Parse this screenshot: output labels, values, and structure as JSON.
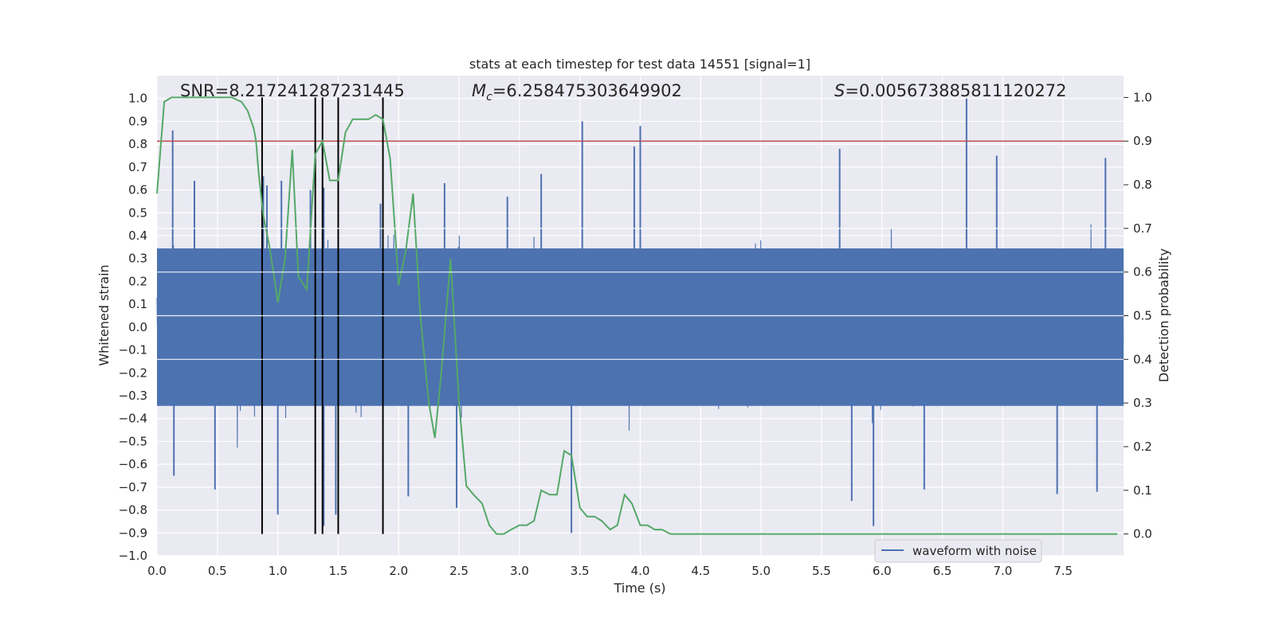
{
  "chart_data": {
    "type": "line",
    "title": "stats at each timestep for test data 14551 [signal=1]",
    "xlabel": "Time (s)",
    "ylabel_left": "Whitened strain",
    "ylabel_right": "Detection probability",
    "xlim": [
      0.0,
      8.0
    ],
    "ylim_left": [
      -1.0,
      1.1
    ],
    "ylim_right": [
      -0.05,
      1.05
    ],
    "x_ticks": [
      "0.0",
      "0.5",
      "1.0",
      "1.5",
      "2.0",
      "2.5",
      "3.0",
      "3.5",
      "4.0",
      "4.5",
      "5.0",
      "5.5",
      "6.0",
      "6.5",
      "7.0",
      "7.5"
    ],
    "y_ticks_left": [
      "−1.0",
      "−0.9",
      "−0.8",
      "−0.7",
      "−0.6",
      "−0.5",
      "−0.4",
      "−0.3",
      "−0.2",
      "−0.1",
      "0.0",
      "0.1",
      "0.2",
      "0.3",
      "0.4",
      "0.5",
      "0.6",
      "0.7",
      "0.8",
      "0.9",
      "1.0"
    ],
    "y_ticks_right": [
      "0.0",
      "0.1",
      "0.2",
      "0.3",
      "0.4",
      "0.5",
      "0.6",
      "0.7",
      "0.8",
      "0.9",
      "1.0"
    ],
    "grid": true,
    "annotations": {
      "snr": "SNR=8.217241287231445",
      "mc_symbol": "M",
      "mc_sub": "c",
      "mc_value": "=6.258475303649902",
      "s_symbol": "S",
      "s_value": "=0.005673885811120272"
    },
    "legend": {
      "label": "waveform with noise",
      "placement": "lower-right"
    },
    "series": [
      {
        "name": "waveform with noise",
        "axis": "left",
        "color": "#4c72b0",
        "style": "dense noise, 8 s sampled",
        "core_amplitude": 0.42,
        "peak_samples": [
          [
            0.13,
            0.86
          ],
          [
            0.31,
            0.64
          ],
          [
            0.88,
            0.66
          ],
          [
            0.91,
            0.62
          ],
          [
            1.03,
            0.64
          ],
          [
            1.27,
            0.6
          ],
          [
            1.38,
            0.61
          ],
          [
            1.85,
            0.54
          ],
          [
            2.38,
            0.63
          ],
          [
            2.9,
            0.57
          ],
          [
            3.18,
            0.67
          ],
          [
            3.52,
            0.9
          ],
          [
            3.95,
            0.79
          ],
          [
            4.0,
            0.88
          ],
          [
            5.65,
            0.78
          ],
          [
            6.7,
            1.0
          ],
          [
            6.95,
            0.75
          ],
          [
            7.85,
            0.74
          ]
        ],
        "trough_samples": [
          [
            0.14,
            -0.65
          ],
          [
            0.48,
            -0.71
          ],
          [
            1.0,
            -0.82
          ],
          [
            1.38,
            -0.87
          ],
          [
            1.48,
            -0.82
          ],
          [
            2.08,
            -0.74
          ],
          [
            2.48,
            -0.79
          ],
          [
            3.43,
            -0.9
          ],
          [
            5.75,
            -0.76
          ],
          [
            5.93,
            -0.87
          ],
          [
            6.35,
            -0.71
          ],
          [
            7.45,
            -0.73
          ],
          [
            7.78,
            -0.72
          ]
        ]
      },
      {
        "name": "",
        "axis": "right",
        "color": "#55a868",
        "x": [
          0.0,
          0.06,
          0.12,
          0.25,
          0.5,
          0.62,
          0.7,
          0.75,
          0.8,
          0.82,
          0.84,
          0.86,
          0.88,
          0.93,
          0.98,
          1.0,
          1.06,
          1.12,
          1.17,
          1.24,
          1.31,
          1.37,
          1.43,
          1.5,
          1.56,
          1.62,
          1.68,
          1.75,
          1.81,
          1.87,
          1.93,
          2.0,
          2.06,
          2.12,
          2.18,
          2.25,
          2.3,
          2.35,
          2.43,
          2.5,
          2.56,
          2.62,
          2.69,
          2.75,
          2.81,
          2.87,
          2.93,
          3.0,
          3.06,
          3.12,
          3.18,
          3.25,
          3.31,
          3.37,
          3.43,
          3.5,
          3.56,
          3.62,
          3.68,
          3.75,
          3.81,
          3.87,
          3.93,
          4.0,
          4.06,
          4.12,
          4.18,
          4.25,
          4.5,
          4.75,
          5.0,
          5.25,
          5.5,
          5.75,
          6.0,
          6.25,
          6.5,
          6.75,
          7.0,
          7.25,
          7.5,
          7.75,
          7.95
        ],
        "y": [
          0.78,
          0.99,
          1.0,
          1.0,
          1.0,
          1.0,
          0.99,
          0.97,
          0.93,
          0.9,
          0.83,
          0.78,
          0.73,
          0.66,
          0.57,
          0.53,
          0.63,
          0.88,
          0.59,
          0.56,
          0.87,
          0.9,
          0.81,
          0.81,
          0.92,
          0.95,
          0.95,
          0.95,
          0.96,
          0.95,
          0.86,
          0.57,
          0.65,
          0.78,
          0.5,
          0.3,
          0.22,
          0.36,
          0.63,
          0.3,
          0.11,
          0.09,
          0.07,
          0.02,
          0.0,
          0.0,
          0.01,
          0.02,
          0.02,
          0.03,
          0.1,
          0.09,
          0.09,
          0.19,
          0.18,
          0.06,
          0.04,
          0.04,
          0.03,
          0.01,
          0.02,
          0.09,
          0.07,
          0.02,
          0.02,
          0.01,
          0.01,
          0.0,
          0.0,
          0.0,
          0.0,
          0.0,
          0.0,
          0.0,
          0.0,
          0.0,
          0.0,
          0.0,
          0.0,
          0.0,
          0.0,
          0.0,
          0.0
        ]
      }
    ],
    "threshold_line": {
      "axis": "right",
      "y": 0.9,
      "color": "#c44e52"
    },
    "vertical_lines": {
      "axis_x": [
        0.87,
        1.31,
        1.37,
        1.5,
        1.87
      ],
      "color": "#000000"
    }
  }
}
